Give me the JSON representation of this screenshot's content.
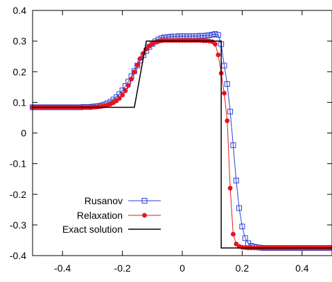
{
  "chart_data": {
    "type": "line",
    "title": "",
    "xlabel": "",
    "ylabel": "",
    "xlim": [
      -0.5,
      0.5
    ],
    "ylim": [
      -0.4,
      0.4
    ],
    "xticks": [
      "-0.4",
      "-0.2",
      "0",
      "0.2",
      "0.4"
    ],
    "xtick_values": [
      -0.4,
      -0.2,
      0,
      0.2,
      0.4
    ],
    "yticks": [
      "0.4",
      "0.3",
      "0.2",
      "0.1",
      "0",
      "-0.1",
      "-0.2",
      "-0.3",
      "-0.4"
    ],
    "ytick_values": [
      0.4,
      0.3,
      0.2,
      0.1,
      0,
      -0.1,
      -0.2,
      -0.3,
      -0.4
    ],
    "grid": false,
    "legend_position": "bottom-left",
    "series": [
      {
        "name": "Rusanov",
        "color": "#2b3fd1",
        "marker": "open-square",
        "x": [
          -0.5,
          -0.49,
          -0.48,
          -0.47,
          -0.46,
          -0.45,
          -0.44,
          -0.43,
          -0.42,
          -0.41,
          -0.4,
          -0.39,
          -0.38,
          -0.37,
          -0.36,
          -0.35,
          -0.34,
          -0.33,
          -0.32,
          -0.31,
          -0.3,
          -0.29,
          -0.28,
          -0.27,
          -0.26,
          -0.25,
          -0.24,
          -0.23,
          -0.22,
          -0.21,
          -0.2,
          -0.19,
          -0.18,
          -0.17,
          -0.16,
          -0.15,
          -0.14,
          -0.13,
          -0.12,
          -0.11,
          -0.1,
          -0.09,
          -0.08,
          -0.07,
          -0.06,
          -0.05,
          -0.04,
          -0.03,
          -0.02,
          -0.01,
          0,
          0.01,
          0.02,
          0.03,
          0.04,
          0.05,
          0.06,
          0.07,
          0.08,
          0.09,
          0.1,
          0.11,
          0.12,
          0.13,
          0.14,
          0.15,
          0.16,
          0.17,
          0.18,
          0.19,
          0.2,
          0.21,
          0.22,
          0.23,
          0.24,
          0.25,
          0.26,
          0.27,
          0.28,
          0.29,
          0.3,
          0.31,
          0.32,
          0.33,
          0.34,
          0.35,
          0.36,
          0.37,
          0.38,
          0.39,
          0.4,
          0.41,
          0.42,
          0.43,
          0.44,
          0.45,
          0.46,
          0.47,
          0.48,
          0.49,
          0.5
        ],
        "y": [
          0.084,
          0.084,
          0.084,
          0.084,
          0.084,
          0.084,
          0.084,
          0.084,
          0.084,
          0.084,
          0.084,
          0.084,
          0.084,
          0.084,
          0.084,
          0.084,
          0.084,
          0.085,
          0.085,
          0.085,
          0.086,
          0.087,
          0.088,
          0.09,
          0.093,
          0.097,
          0.102,
          0.109,
          0.117,
          0.127,
          0.139,
          0.153,
          0.168,
          0.185,
          0.202,
          0.22,
          0.237,
          0.254,
          0.268,
          0.281,
          0.291,
          0.299,
          0.305,
          0.309,
          0.312,
          0.313,
          0.314,
          0.315,
          0.315,
          0.316,
          0.316,
          0.316,
          0.316,
          0.316,
          0.316,
          0.316,
          0.317,
          0.317,
          0.318,
          0.319,
          0.321,
          0.323,
          0.32,
          0.29,
          0.22,
          0.16,
          0.07,
          -0.04,
          -0.155,
          -0.245,
          -0.305,
          -0.343,
          -0.36,
          -0.368,
          -0.371,
          -0.373,
          -0.374,
          -0.375,
          -0.375,
          -0.375,
          -0.375,
          -0.375,
          -0.375,
          -0.375,
          -0.375,
          -0.375,
          -0.375,
          -0.375,
          -0.375,
          -0.375,
          -0.375,
          -0.375,
          -0.375,
          -0.375,
          -0.375,
          -0.375,
          -0.375,
          -0.375,
          -0.375,
          -0.375,
          -0.375
        ]
      },
      {
        "name": "Relaxation",
        "color": "#e8141c",
        "marker": "filled-circle",
        "x": [
          -0.5,
          -0.49,
          -0.48,
          -0.47,
          -0.46,
          -0.45,
          -0.44,
          -0.43,
          -0.42,
          -0.41,
          -0.4,
          -0.39,
          -0.38,
          -0.37,
          -0.36,
          -0.35,
          -0.34,
          -0.33,
          -0.32,
          -0.31,
          -0.3,
          -0.29,
          -0.28,
          -0.27,
          -0.26,
          -0.25,
          -0.24,
          -0.23,
          -0.22,
          -0.21,
          -0.2,
          -0.19,
          -0.18,
          -0.17,
          -0.16,
          -0.15,
          -0.14,
          -0.13,
          -0.12,
          -0.11,
          -0.1,
          -0.09,
          -0.08,
          -0.07,
          -0.06,
          -0.05,
          -0.04,
          -0.03,
          -0.02,
          -0.01,
          0,
          0.01,
          0.02,
          0.03,
          0.04,
          0.05,
          0.06,
          0.07,
          0.08,
          0.09,
          0.1,
          0.11,
          0.12,
          0.13,
          0.14,
          0.15,
          0.16,
          0.17,
          0.18,
          0.19,
          0.2,
          0.21,
          0.22,
          0.23,
          0.24,
          0.25,
          0.26,
          0.27,
          0.28,
          0.29,
          0.3,
          0.31,
          0.32,
          0.33,
          0.34,
          0.35,
          0.36,
          0.37,
          0.38,
          0.39,
          0.4,
          0.41,
          0.42,
          0.43,
          0.44,
          0.45,
          0.46,
          0.47,
          0.48,
          0.49,
          0.5
        ],
        "y": [
          0.084,
          0.084,
          0.084,
          0.084,
          0.084,
          0.084,
          0.084,
          0.084,
          0.084,
          0.084,
          0.084,
          0.084,
          0.084,
          0.084,
          0.084,
          0.084,
          0.084,
          0.084,
          0.084,
          0.084,
          0.085,
          0.085,
          0.086,
          0.087,
          0.089,
          0.091,
          0.094,
          0.099,
          0.105,
          0.113,
          0.124,
          0.138,
          0.155,
          0.176,
          0.199,
          0.222,
          0.243,
          0.26,
          0.274,
          0.284,
          0.291,
          0.296,
          0.299,
          0.301,
          0.302,
          0.302,
          0.302,
          0.302,
          0.302,
          0.302,
          0.302,
          0.302,
          0.302,
          0.302,
          0.302,
          0.302,
          0.302,
          0.301,
          0.301,
          0.3,
          0.298,
          0.29,
          0.255,
          0.195,
          0.13,
          0.04,
          -0.18,
          -0.33,
          -0.362,
          -0.37,
          -0.373,
          -0.374,
          -0.375,
          -0.375,
          -0.375,
          -0.375,
          -0.375,
          -0.375,
          -0.375,
          -0.375,
          -0.375,
          -0.375,
          -0.375,
          -0.375,
          -0.375,
          -0.375,
          -0.375,
          -0.375,
          -0.375,
          -0.375,
          -0.375,
          -0.375,
          -0.375,
          -0.375,
          -0.375,
          -0.375,
          -0.375,
          -0.375,
          -0.375,
          -0.375,
          -0.375
        ]
      },
      {
        "name": "Exact solution",
        "color": "#000000",
        "marker": "none",
        "x": [
          -0.5,
          -0.16,
          -0.12,
          0.13,
          0.13,
          0.5
        ],
        "y": [
          0.084,
          0.084,
          0.3,
          0.3,
          -0.375,
          -0.375
        ]
      }
    ]
  }
}
